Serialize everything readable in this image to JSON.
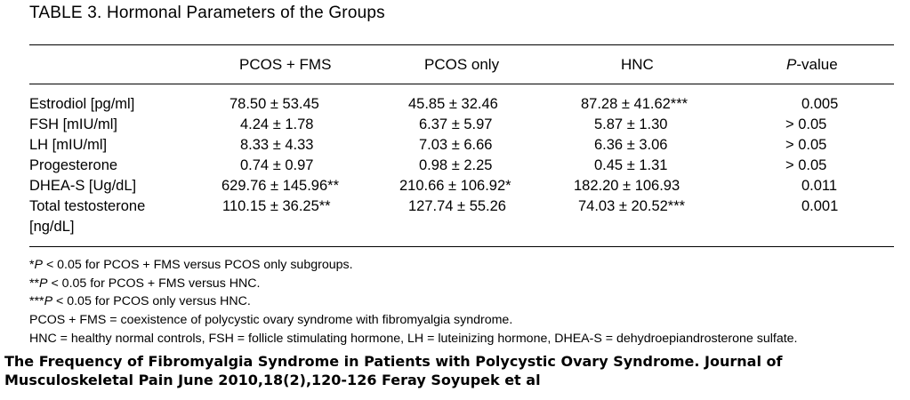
{
  "table": {
    "title": "TABLE 3. Hormonal Parameters of the Groups",
    "headers": [
      "PCOS + FMS",
      "PCOS only",
      "HNC",
      "P",
      "-value"
    ],
    "rows": [
      {
        "label": "Estrodiol [pg/ml]",
        "label2": "",
        "c1": "78.50 ± 53.45",
        "c2": "45.85 ± 32.46",
        "c3": "87.28 ± 41.62***",
        "p": "0.005"
      },
      {
        "label": "FSH [mIU/ml]",
        "label2": "",
        "c1": "4.24 ± 1.78",
        "c2": "6.37 ± 5.97",
        "c3": "5.87 ± 1.30",
        "p": "> 0.05"
      },
      {
        "label": "LH [mIU/ml]",
        "label2": "",
        "c1": "8.33 ± 4.33",
        "c2": "7.03 ± 6.66",
        "c3": "6.36 ± 3.06",
        "p": "> 0.05"
      },
      {
        "label": "Progesterone",
        "label2": "",
        "c1": "0.74 ± 0.97",
        "c2": "0.98 ± 2.25",
        "c3": "0.45 ± 1.31",
        "p": "> 0.05"
      },
      {
        "label": "DHEA-S [Ug/dL]",
        "label2": "",
        "c1": "629.76 ± 145.96**",
        "c2": "210.66 ± 106.92*",
        "c3": "182.20 ± 106.93",
        "p": "0.011"
      },
      {
        "label": "Total testosterone",
        "label2": "[ng/dL]",
        "c1": "110.15 ± 36.25**",
        "c2": "127.74 ± 55.26",
        "c3": "74.03 ± 20.52***",
        "p": "0.001"
      }
    ],
    "footnotes": [
      {
        "prefix": "*",
        "p": "P",
        "rest": " < 0.05 for PCOS + FMS versus PCOS only subgroups."
      },
      {
        "prefix": "**",
        "p": "P",
        "rest": " < 0.05 for PCOS + FMS versus HNC."
      },
      {
        "prefix": "***",
        "p": "P",
        "rest": " < 0.05 for PCOS only versus HNC."
      },
      {
        "prefix": "",
        "p": "",
        "rest": "PCOS + FMS = coexistence of polycystic ovary syndrome with fibromyalgia syndrome."
      },
      {
        "prefix": "",
        "p": "",
        "rest": "HNC = healthy normal controls, FSH = follicle stimulating hormone, LH = luteinizing hormone, DHEA-S = dehydroepiandrosterone sulfate."
      }
    ]
  },
  "citation": "The Frequency of Fibromyalgia Syndrome in Patients with Polycystic Ovary Syndrome. Journal of Musculoskeletal Pain June 2010,18(2),120-126 Feray Soyupek et al"
}
